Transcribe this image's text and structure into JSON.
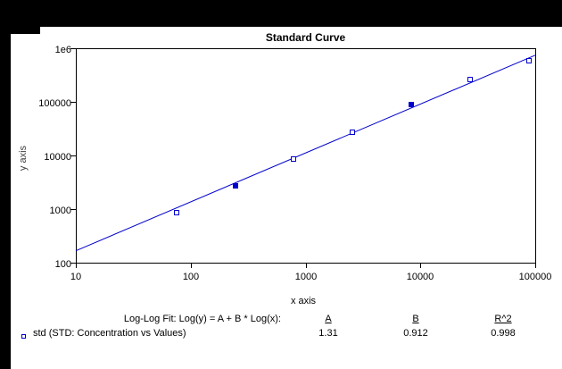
{
  "title": "Standard Curve",
  "axes": {
    "x_label": "x axis",
    "y_label": "y axis",
    "x_tick_labels": [
      "10",
      "100",
      "1000",
      "10000",
      "100000"
    ],
    "y_tick_labels": [
      "1e6",
      "100000",
      "10000",
      "1000",
      "100"
    ]
  },
  "footer": {
    "fit_label": "Log-Log Fit: Log(y) = A + B * Log(x):",
    "col_a": "A",
    "col_b": "B",
    "col_r2": "R^2",
    "a_value": "1.31",
    "b_value": "0.912",
    "r2_value": "0.998",
    "legend_label": "std (STD: Concentration vs Values)"
  },
  "colors": {
    "series": "#0000CC",
    "frame": "#000000",
    "background": "#000000",
    "plot_background": "#FFFFFF"
  },
  "chart_data": {
    "type": "scatter",
    "title": "Standard Curve",
    "xlabel": "x axis",
    "ylabel": "y axis",
    "x_scale": "log",
    "y_scale": "log",
    "xlim": [
      10,
      100000
    ],
    "ylim": [
      100,
      1000000
    ],
    "x_ticks": [
      10,
      100,
      1000,
      10000,
      100000
    ],
    "y_ticks": [
      100,
      1000,
      10000,
      100000,
      1000000
    ],
    "grid": false,
    "legend_position": "bottom-left",
    "series": [
      {
        "name": "std (STD: Concentration vs Values)",
        "color": "#0000CC",
        "marker": "open-square",
        "points": [
          {
            "x": 75,
            "y": 860,
            "marker": "open"
          },
          {
            "x": 245,
            "y": 2700,
            "marker": "filled"
          },
          {
            "x": 790,
            "y": 8600,
            "marker": "open"
          },
          {
            "x": 2550,
            "y": 27000,
            "marker": "open"
          },
          {
            "x": 8300,
            "y": 89000,
            "marker": "filled"
          },
          {
            "x": 27000,
            "y": 260000,
            "marker": "open"
          },
          {
            "x": 88000,
            "y": 580000,
            "marker": "open"
          }
        ]
      }
    ],
    "fit": {
      "type": "log-log",
      "equation": "Log(y) = A + B * Log(x)",
      "A": 1.31,
      "B": 0.912,
      "R2": 0.998
    }
  }
}
